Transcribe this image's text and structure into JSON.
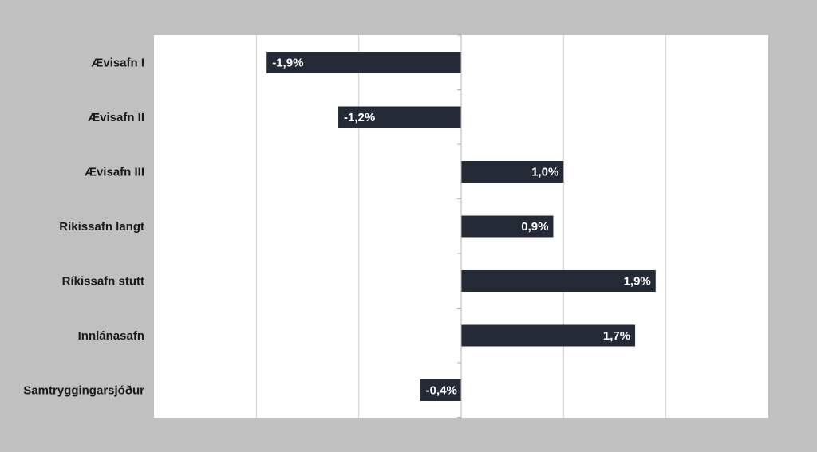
{
  "chart_data": {
    "type": "bar",
    "orientation": "horizontal",
    "categories": [
      "Ævisafn I",
      "Ævisafn II",
      "Ævisafn III",
      "Ríkissafn langt",
      "Ríkissafn stutt",
      "Innlánasafn",
      "Samtryggingarsjóður"
    ],
    "values": [
      -1.9,
      -1.2,
      1.0,
      0.9,
      1.9,
      1.7,
      -0.4
    ],
    "data_labels": [
      "-1,9%",
      "-1,2%",
      "1,0%",
      "0,9%",
      "1,9%",
      "1,7%",
      "-0,4%"
    ],
    "title": "",
    "xlabel": "",
    "ylabel": "",
    "xlim": [
      -3.0,
      3.0
    ],
    "grid_step": 1.0,
    "grid": true,
    "legend": "none",
    "colors": {
      "bar": "#242a36",
      "label_text": "#ffffff",
      "category_text": "#1a1a1a",
      "gridline": "#cfcfcf",
      "axis": "#b3b3b3",
      "plot_background": "#ffffff",
      "page_background": "#c0c0c0"
    }
  }
}
